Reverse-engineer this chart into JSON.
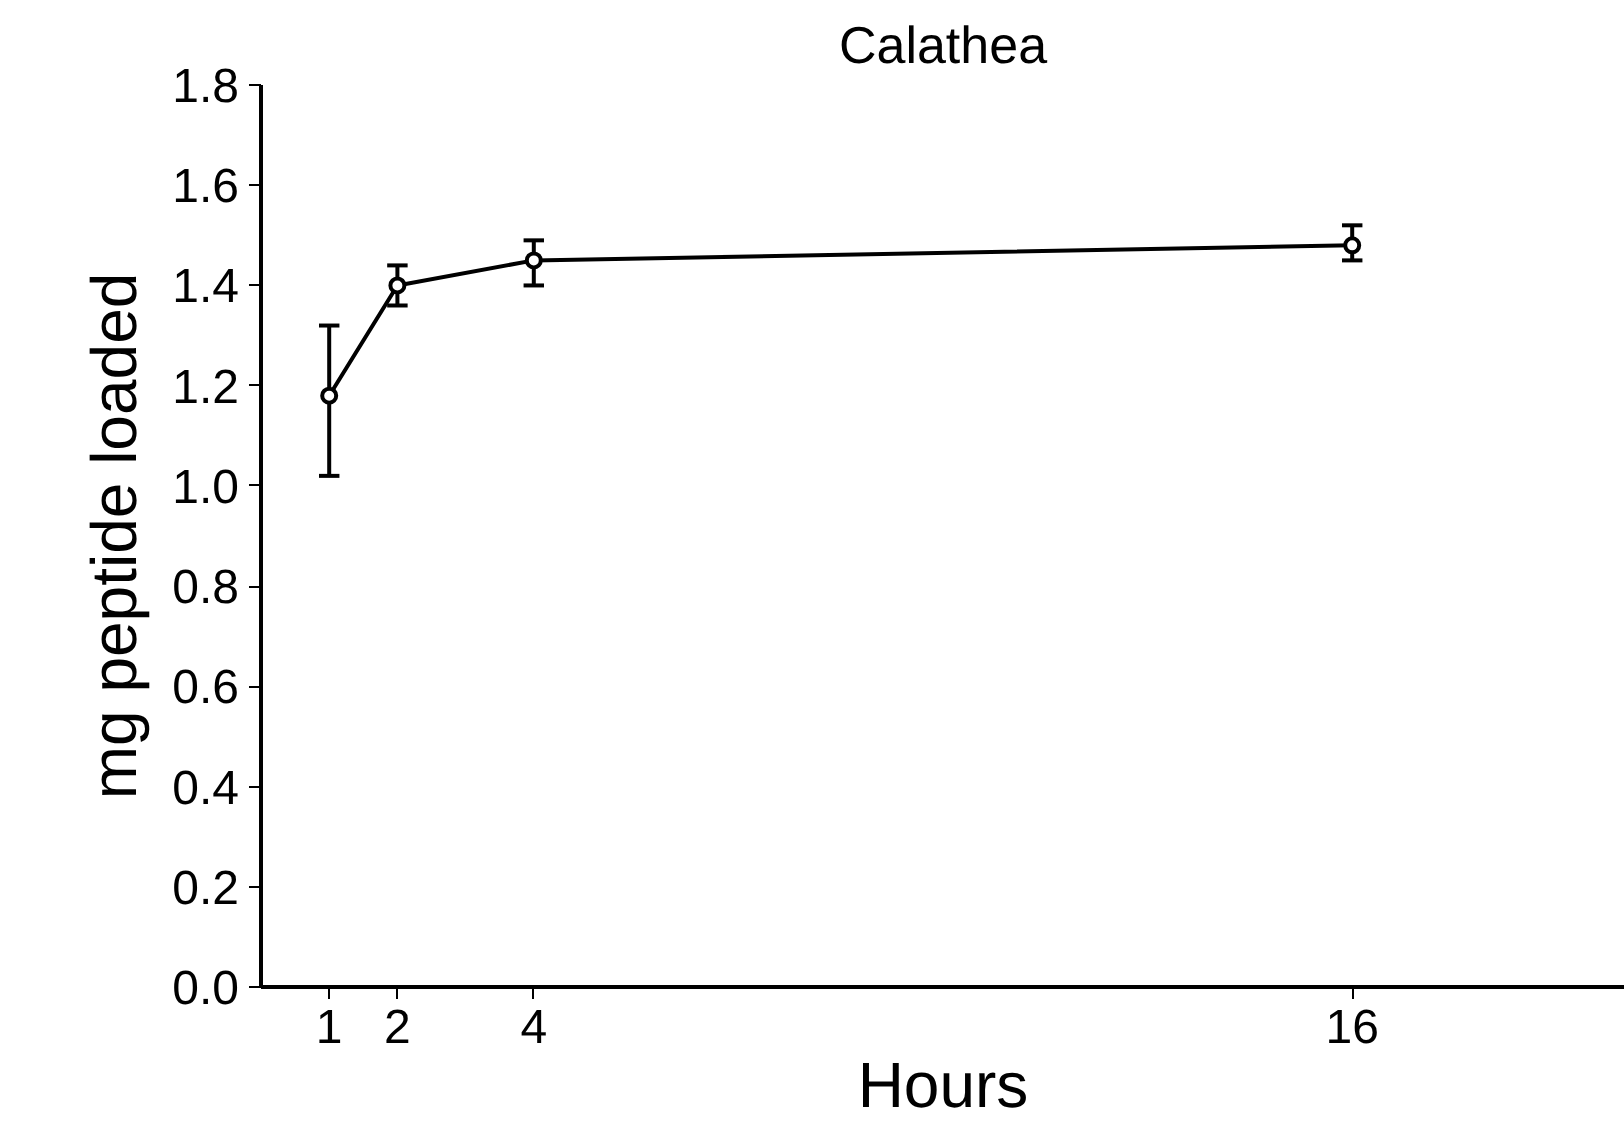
{
  "chart_data": {
    "type": "line",
    "title": "Calathea",
    "xlabel": "Hours",
    "ylabel": "mg peptide loaded",
    "x": [
      1,
      2,
      4,
      16
    ],
    "series": [
      {
        "color": "#000000",
        "values": [
          1.18,
          1.4,
          1.45,
          1.48
        ],
        "errors": [
          [
            1.02,
            1.32
          ],
          [
            1.36,
            1.44
          ],
          [
            1.4,
            1.49
          ],
          [
            1.45,
            1.52
          ]
        ]
      }
    ],
    "xlim": [
      0,
      20
    ],
    "xticks": [
      1,
      2,
      4,
      16
    ],
    "ylim": [
      0,
      1.8
    ],
    "yticks": [
      {
        "value": 0,
        "label": "0.0"
      },
      0.2,
      0.4,
      0.6,
      0.8,
      {
        "value": 1,
        "label": "1.0"
      },
      1.2,
      1.4,
      1.6,
      1.8
    ],
    "grid": false,
    "marker": "circle",
    "line_style": "solid"
  }
}
